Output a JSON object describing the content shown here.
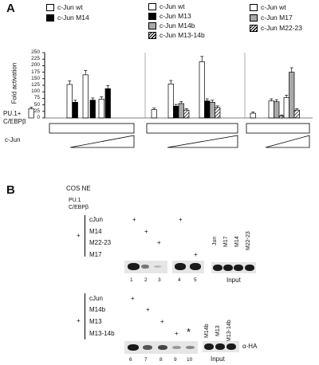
{
  "panel_a": {
    "letter": "A",
    "y_axis_label": "Fold activation",
    "y_ticks": [
      "0",
      "25",
      "50",
      "75",
      "100",
      "125",
      "150",
      "175",
      "200",
      "225",
      "250"
    ],
    "cond_pu1": "PU.1+",
    "cond_cebp": "C/EBPβ",
    "cond_cjun": "c-Jun",
    "legend1": [
      "c-Jun wt",
      "c-Jun M14"
    ],
    "legend2": [
      "c-Jun wt",
      "c-Jun M13",
      "c-Jun M14b",
      "c-Jun M13-14b"
    ],
    "legend3": [
      "c-Jun wt",
      "c-Jun M17",
      "c-Jun M22-23"
    ]
  },
  "chart_data": {
    "type": "bar",
    "ylabel": "Fold activation",
    "ylim": [
      0,
      250
    ],
    "panels": [
      {
        "series": [
          {
            "name": "c-Jun wt",
            "values": [
              35,
              128,
              165,
              72
            ]
          },
          {
            "name": "c-Jun M14",
            "values": [
              null,
              60,
              68,
              112
            ]
          }
        ]
      },
      {
        "series": [
          {
            "name": "c-Jun wt",
            "values": [
              32,
              130,
              215
            ]
          },
          {
            "name": "c-Jun M13",
            "values": [
              null,
              45,
              65
            ]
          },
          {
            "name": "c-Jun M14b",
            "values": [
              null,
              55,
              60
            ]
          },
          {
            "name": "c-Jun M13-14b",
            "values": [
              null,
              30,
              40
            ]
          }
        ]
      },
      {
        "series": [
          {
            "name": "c-Jun wt",
            "values": [
              18,
              65,
              78
            ]
          },
          {
            "name": "c-Jun M17",
            "values": [
              null,
              62,
              175
            ]
          },
          {
            "name": "c-Jun M22-23",
            "values": [
              null,
              8,
              30
            ]
          }
        ]
      }
    ]
  },
  "panel_b": {
    "letter": "B",
    "header": "COS NE",
    "pu1": "PU.1",
    "cebp": "C/EBPβ",
    "plus": "+",
    "asterisk": "*",
    "top_rows": [
      "cJun",
      "M14",
      "M22-23",
      "M17"
    ],
    "top_lanes": [
      "1",
      "2",
      "3",
      "4",
      "5"
    ],
    "top_input_cols": [
      "Jun",
      "M17",
      "M14",
      "M22-23"
    ],
    "bottom_rows": [
      "cJun",
      "M14b",
      "M13",
      "M13-14b"
    ],
    "bottom_lanes": [
      "6",
      "7",
      "8",
      "9",
      "10"
    ],
    "bottom_input_cols": [
      "M14b",
      "M13",
      "M13-14b"
    ],
    "input_label": "Input",
    "alpha_ha": "α-HA"
  }
}
